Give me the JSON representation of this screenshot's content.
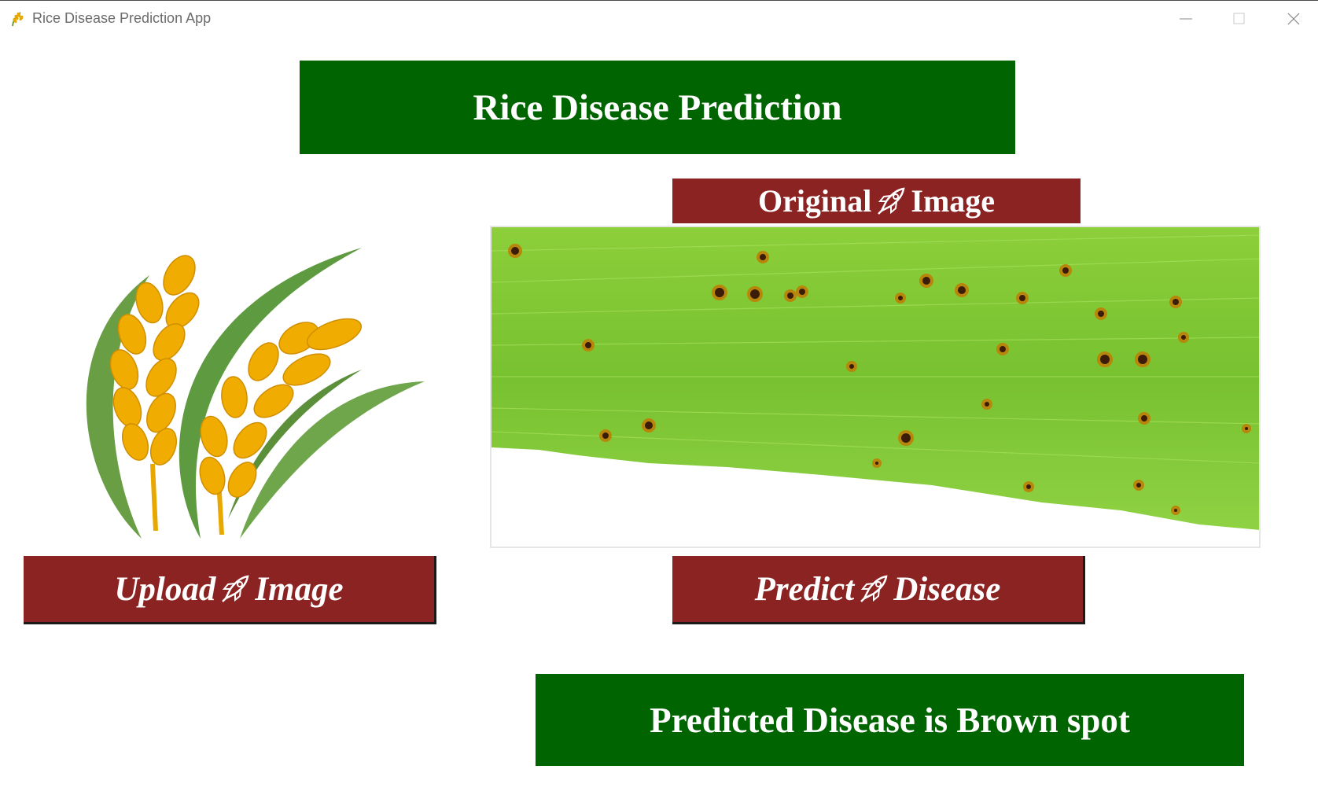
{
  "window": {
    "title": "Rice Disease Prediction App",
    "icon": "rice-ear-icon",
    "controls": [
      "minimize-icon",
      "maximize-icon",
      "close-icon"
    ]
  },
  "header": {
    "title": "Rice Disease Prediction"
  },
  "preview": {
    "caption_before": "Original",
    "caption_after": "Image",
    "caption_icon": "rocket-icon",
    "image": "rice-leaf-brown-spot-photo"
  },
  "logo": {
    "icon": "rice-plant-logo"
  },
  "buttons": {
    "upload": {
      "before": "Upload",
      "after": "Image",
      "icon": "rocket-icon"
    },
    "predict": {
      "before": "Predict",
      "after": "Disease",
      "icon": "rocket-icon"
    }
  },
  "result": {
    "text": "Predicted Disease is Brown spot"
  },
  "colors": {
    "banner_green": "#006400",
    "button_maroon": "#8b2323",
    "text_white": "#ffffff"
  }
}
